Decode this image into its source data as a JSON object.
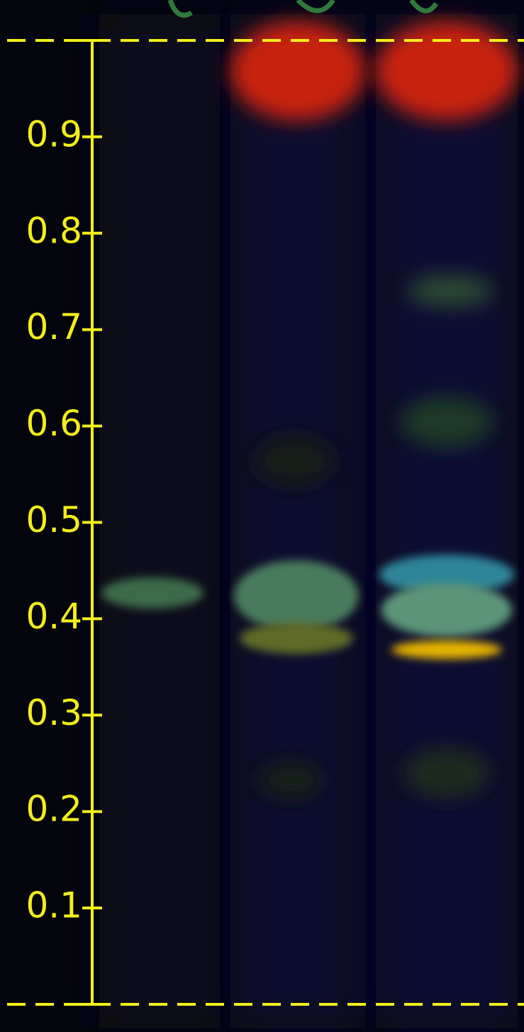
{
  "chart_data": {
    "type": "tlc",
    "ylim": [
      0,
      1
    ],
    "yticks": [
      0.1,
      0.2,
      0.3,
      0.4,
      0.5,
      0.6,
      0.7,
      0.8,
      0.9
    ],
    "color": "#f2ee1a"
  }
}
